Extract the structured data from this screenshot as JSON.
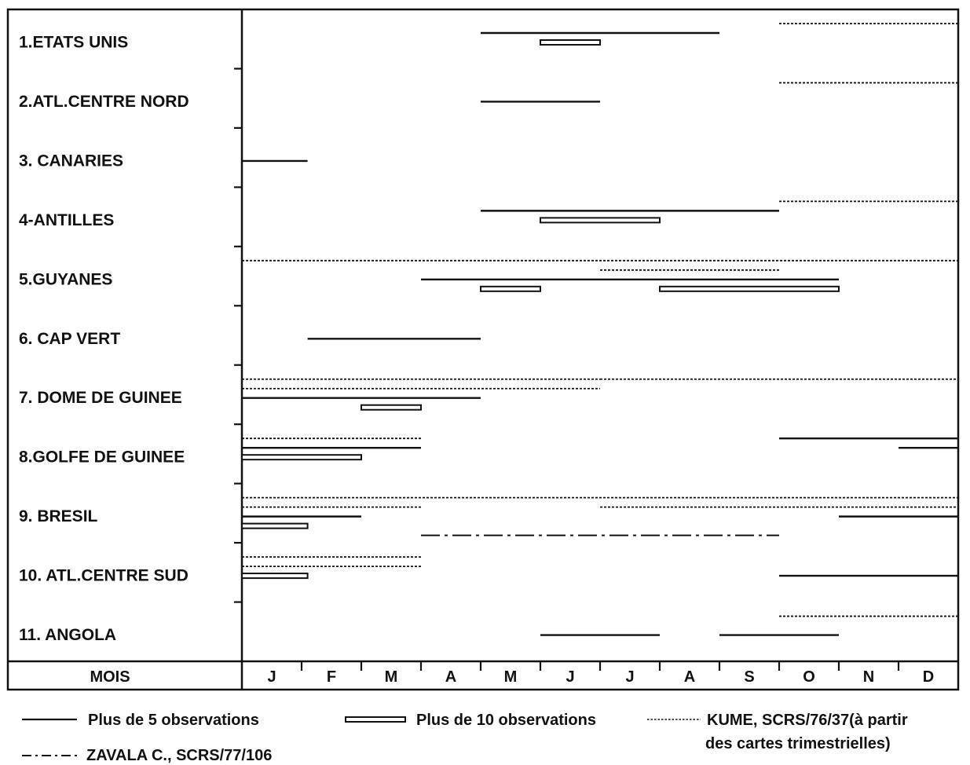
{
  "chart_data": {
    "type": "gantt",
    "x_unit": "month",
    "xlim": [
      0,
      12
    ],
    "axis_label": "MOIS",
    "months": [
      "J",
      "F",
      "M",
      "A",
      "M",
      "J",
      "J",
      "A",
      "S",
      "O",
      "N",
      "D"
    ],
    "regions": [
      "1.ETATS UNIS",
      "2.ATL.CENTRE NORD",
      "3. CANARIES",
      "4-ANTILLES",
      "5.GUYANES",
      "6. CAP  VERT",
      "7. DOME DE GUINEE",
      "8.GOLFE DE GUINEE",
      "9. BRESIL",
      "10. ATL.CENTRE SUD",
      "11. ANGOLA"
    ],
    "legend": {
      "solid": "Plus de 5 observations",
      "double": "Plus de 10 observations",
      "dotted_1": "KUME, SCRS/76/37(à partir",
      "dotted_2": "des cartes  trimestrielles)",
      "dashdot": "ZAVALA  C., SCRS/77/106"
    },
    "styles": {
      "solid": "solid",
      "double": "double",
      "dotted": "dotted",
      "dashdot": "dashdot"
    },
    "series": [
      {
        "region": 0,
        "style": "dotted",
        "start": 9.0,
        "end": 12.0,
        "lane": 0
      },
      {
        "region": 0,
        "style": "solid",
        "start": 4.0,
        "end": 8.0,
        "lane": 1
      },
      {
        "region": 0,
        "style": "double",
        "start": 5.0,
        "end": 6.0,
        "lane": 2
      },
      {
        "region": 1,
        "style": "dotted",
        "start": 9.0,
        "end": 12.0,
        "lane": 0
      },
      {
        "region": 1,
        "style": "solid",
        "start": 4.0,
        "end": 6.0,
        "lane": 2
      },
      {
        "region": 2,
        "style": "solid",
        "start": 0.0,
        "end": 1.1,
        "lane": 2
      },
      {
        "region": 3,
        "style": "dotted",
        "start": 9.0,
        "end": 12.0,
        "lane": 0
      },
      {
        "region": 3,
        "style": "solid",
        "start": 4.0,
        "end": 9.0,
        "lane": 1
      },
      {
        "region": 3,
        "style": "double",
        "start": 5.0,
        "end": 7.0,
        "lane": 2
      },
      {
        "region": 4,
        "style": "dotted",
        "start": 0.0,
        "end": 12.0,
        "lane": 0
      },
      {
        "region": 4,
        "style": "dotted",
        "start": 6.0,
        "end": 9.0,
        "lane": 1
      },
      {
        "region": 4,
        "style": "solid",
        "start": 3.0,
        "end": 10.0,
        "lane": 2
      },
      {
        "region": 4,
        "style": "double",
        "start": 4.0,
        "end": 5.0,
        "lane": 3
      },
      {
        "region": 4,
        "style": "double",
        "start": 7.0,
        "end": 10.0,
        "lane": 3
      },
      {
        "region": 5,
        "style": "solid",
        "start": 1.1,
        "end": 4.0,
        "lane": 2
      },
      {
        "region": 6,
        "style": "dotted",
        "start": 0.0,
        "end": 6.0,
        "lane": 0
      },
      {
        "region": 6,
        "style": "dotted",
        "start": 6.0,
        "end": 12.0,
        "lane": 0
      },
      {
        "region": 6,
        "style": "dotted",
        "start": 0.0,
        "end": 6.0,
        "lane": 1
      },
      {
        "region": 6,
        "style": "solid",
        "start": 0.0,
        "end": 4.0,
        "lane": 2
      },
      {
        "region": 6,
        "style": "double",
        "start": 2.0,
        "end": 3.0,
        "lane": 3
      },
      {
        "region": 7,
        "style": "dotted",
        "start": 0.0,
        "end": 3.0,
        "lane": 0
      },
      {
        "region": 7,
        "style": "solid",
        "start": 9.0,
        "end": 12.0,
        "lane": 0
      },
      {
        "region": 7,
        "style": "solid",
        "start": 0.0,
        "end": 3.0,
        "lane": 1
      },
      {
        "region": 7,
        "style": "solid",
        "start": 11.0,
        "end": 12.0,
        "lane": 1
      },
      {
        "region": 7,
        "style": "double",
        "start": 0.0,
        "end": 2.0,
        "lane": 2
      },
      {
        "region": 8,
        "style": "dotted",
        "start": 0.0,
        "end": 12.0,
        "lane": 0
      },
      {
        "region": 8,
        "style": "dotted",
        "start": 0.0,
        "end": 3.0,
        "lane": 1
      },
      {
        "region": 8,
        "style": "dotted",
        "start": 6.0,
        "end": 12.0,
        "lane": 1
      },
      {
        "region": 8,
        "style": "solid",
        "start": 0.0,
        "end": 2.0,
        "lane": 2
      },
      {
        "region": 8,
        "style": "solid",
        "start": 10.0,
        "end": 12.0,
        "lane": 2
      },
      {
        "region": 8,
        "style": "double",
        "start": 0.0,
        "end": 1.1,
        "lane": 3
      },
      {
        "region": 8,
        "style": "dashdot",
        "start": 3.0,
        "end": 9.0,
        "lane": 4
      },
      {
        "region": 9,
        "style": "dotted",
        "start": 0.0,
        "end": 3.0,
        "lane": 0
      },
      {
        "region": 9,
        "style": "dotted",
        "start": 0.0,
        "end": 3.0,
        "lane": 1
      },
      {
        "region": 9,
        "style": "solid",
        "start": 9.0,
        "end": 12.0,
        "lane": 2
      },
      {
        "region": 9,
        "style": "double",
        "start": 0.0,
        "end": 1.1,
        "lane": 2
      },
      {
        "region": 10,
        "style": "dotted",
        "start": 9.0,
        "end": 12.0,
        "lane": 0
      },
      {
        "region": 10,
        "style": "solid",
        "start": 5.0,
        "end": 7.0,
        "lane": 2
      },
      {
        "region": 10,
        "style": "solid",
        "start": 8.0,
        "end": 10.0,
        "lane": 2
      }
    ]
  }
}
